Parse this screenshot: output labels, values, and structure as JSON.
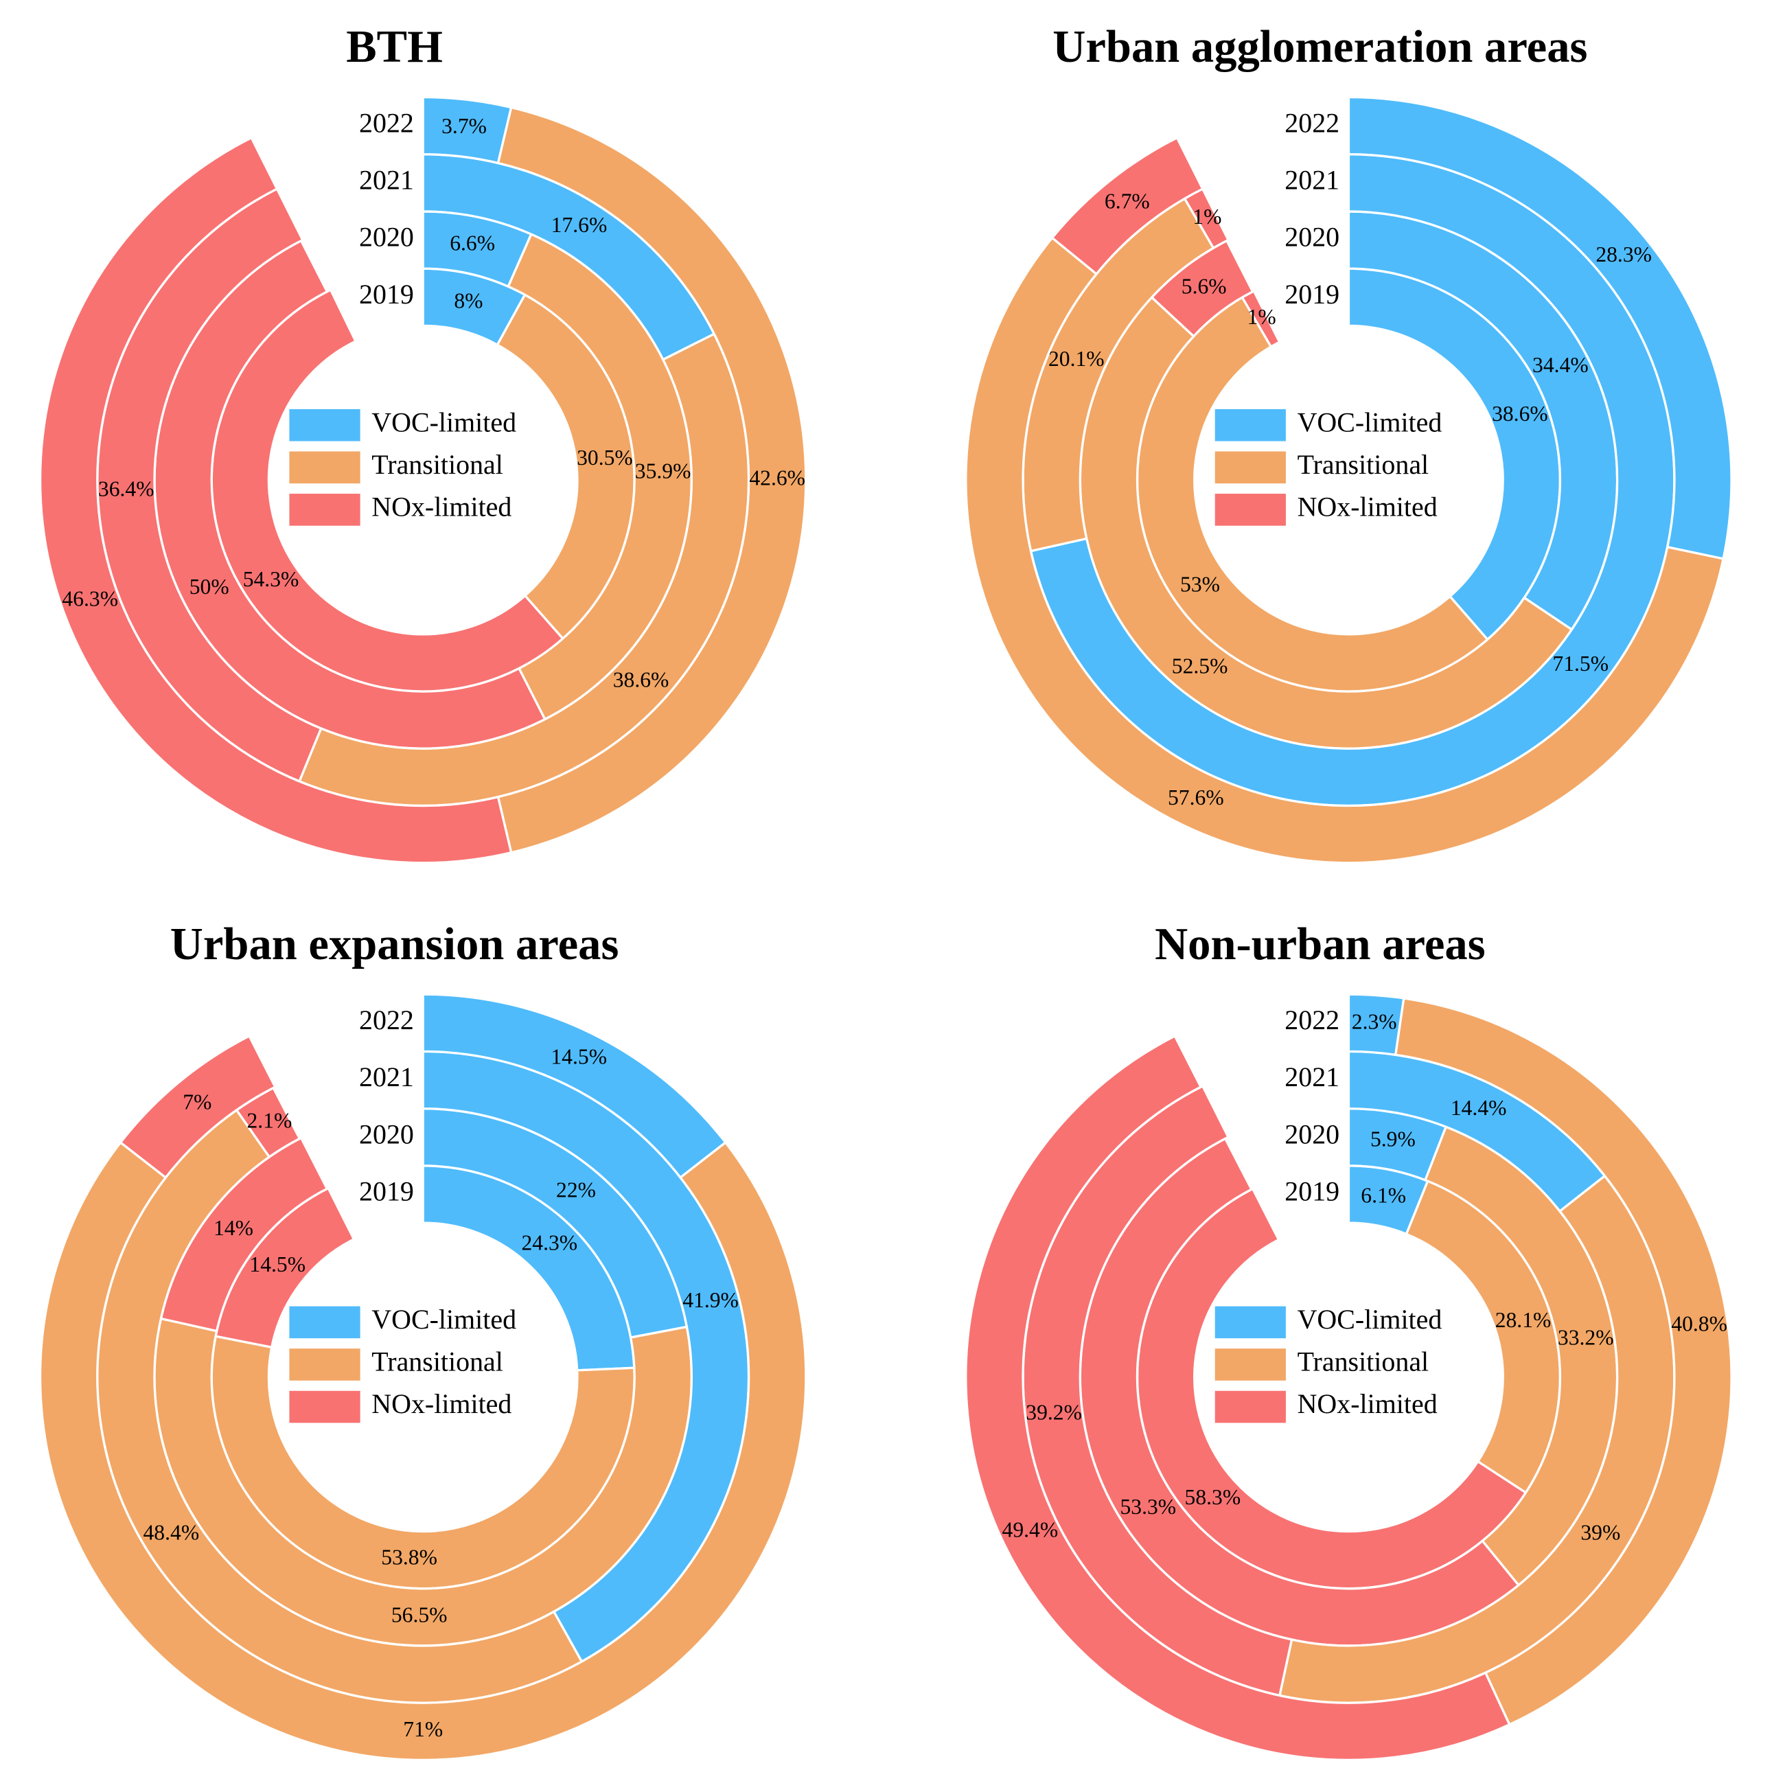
{
  "chart_data": [
    {
      "type": "polar_bar",
      "title": "BTH",
      "categories": [
        "2019",
        "2020",
        "2021",
        "2022"
      ],
      "ylim": [
        0,
        100
      ],
      "series": [
        {
          "name": "VOC-limited",
          "color": "#4fbbfb",
          "values": [
            8,
            6.6,
            17.6,
            3.7
          ],
          "value_labels": [
            "8%",
            "6.6%",
            "17.6%",
            "3.7%"
          ]
        },
        {
          "name": "Transitional",
          "color": "#f2a766",
          "values": [
            30.5,
            35.9,
            38.6,
            42.6
          ],
          "value_labels": [
            "30.5%",
            "35.9%",
            "38.6%",
            "42.6%"
          ]
        },
        {
          "name": "NOx-limited",
          "color": "#f87272",
          "values": [
            54.3,
            50,
            36.4,
            46.3
          ],
          "value_labels": [
            "54.3%",
            "50%",
            "36.4%",
            "46.3%"
          ]
        }
      ]
    },
    {
      "type": "polar_bar",
      "title": "Urban agglomeration areas",
      "categories": [
        "2019",
        "2020",
        "2021",
        "2022"
      ],
      "ylim": [
        0,
        100
      ],
      "series": [
        {
          "name": "VOC-limited",
          "color": "#4fbbfb",
          "values": [
            38.6,
            34.4,
            71.5,
            28.3
          ],
          "value_labels": [
            "38.6%",
            "34.4%",
            "71.5%",
            "28.3%"
          ]
        },
        {
          "name": "Transitional",
          "color": "#f2a766",
          "values": [
            53,
            52.5,
            20.1,
            57.6
          ],
          "value_labels": [
            "53%",
            "52.5%",
            "20.1%",
            "57.6%"
          ]
        },
        {
          "name": "NOx-limited",
          "color": "#f87272",
          "values": [
            1,
            5.6,
            1,
            6.7
          ],
          "value_labels": [
            "1%",
            "5.6%",
            "1%",
            "6.7%"
          ]
        }
      ]
    },
    {
      "type": "polar_bar",
      "title": "Urban expansion areas",
      "categories": [
        "2019",
        "2020",
        "2021",
        "2022"
      ],
      "ylim": [
        0,
        100
      ],
      "series": [
        {
          "name": "VOC-limited",
          "color": "#4fbbfb",
          "values": [
            24.3,
            22,
            41.9,
            14.5
          ],
          "value_labels": [
            "24.3%",
            "22%",
            "41.9%",
            "14.5%"
          ]
        },
        {
          "name": "Transitional",
          "color": "#f2a766",
          "values": [
            53.8,
            56.5,
            48.4,
            71
          ],
          "value_labels": [
            "53.8%",
            "56.5%",
            "48.4%",
            "71%"
          ]
        },
        {
          "name": "NOx-limited",
          "color": "#f87272",
          "values": [
            14.5,
            14,
            2.1,
            7
          ],
          "value_labels": [
            "14.5%",
            "14%",
            "2.1%",
            "7%"
          ]
        }
      ]
    },
    {
      "type": "polar_bar",
      "title": "Non-urban areas",
      "categories": [
        "2019",
        "2020",
        "2021",
        "2022"
      ],
      "ylim": [
        0,
        100
      ],
      "series": [
        {
          "name": "VOC-limited",
          "color": "#4fbbfb",
          "values": [
            6.1,
            5.9,
            14.4,
            2.3
          ],
          "value_labels": [
            "6.1%",
            "5.9%",
            "14.4%",
            "2.3%"
          ]
        },
        {
          "name": "Transitional",
          "color": "#f2a766",
          "values": [
            28.1,
            33.2,
            39,
            40.8
          ],
          "value_labels": [
            "28.1%",
            "33.2%",
            "39%",
            "40.8%"
          ]
        },
        {
          "name": "NOx-limited",
          "color": "#f87272",
          "values": [
            58.3,
            53.3,
            39.2,
            49.4
          ],
          "value_labels": [
            "58.3%",
            "53.3%",
            "39.2%",
            "49.4%"
          ]
        }
      ]
    }
  ]
}
